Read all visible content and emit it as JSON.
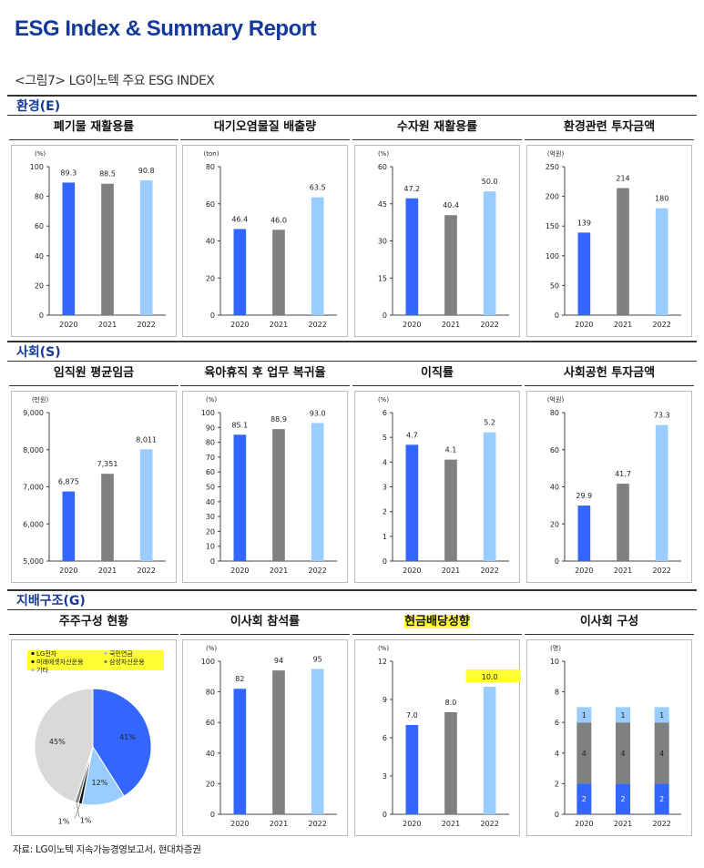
{
  "header": {
    "title": "ESG Index & Summary Report",
    "figure_label": "<그림7> LG이노텍 주요 ESG INDEX"
  },
  "sections": {
    "env": "환경(E)",
    "soc": "사회(S)",
    "gov": "지배구조(G)"
  },
  "source": "자료: LG이노텍 지속가능경영보고서, 현대차증권",
  "colors": {
    "y2020": "#3366ff",
    "y2021": "#808080",
    "y2022": "#99ccff",
    "other": "#d9d9d9",
    "highlight": "#ffff33"
  },
  "chart_data": [
    {
      "id": "waste",
      "type": "bar",
      "title": "폐기물 재활용률",
      "unit": "(%)",
      "categories": [
        "2020",
        "2021",
        "2022"
      ],
      "values": [
        89.3,
        88.5,
        90.8
      ],
      "labels": [
        "89.3",
        "88.5",
        "90.8"
      ],
      "ylim": [
        0,
        100
      ],
      "yticks": [
        0,
        20,
        40,
        60,
        80,
        100
      ],
      "yticklabels": [
        "0",
        "20",
        "40",
        "60",
        "80",
        "100"
      ]
    },
    {
      "id": "air",
      "type": "bar",
      "title": "대기오염물질 배출량",
      "unit": "(ton)",
      "categories": [
        "2020",
        "2021",
        "2022"
      ],
      "values": [
        46.4,
        46.0,
        63.5
      ],
      "labels": [
        "46.4",
        "46.0",
        "63.5"
      ],
      "ylim": [
        0,
        80
      ],
      "yticks": [
        0,
        20,
        40,
        60,
        80
      ],
      "yticklabels": [
        "0",
        "20",
        "40",
        "60",
        "80"
      ]
    },
    {
      "id": "water",
      "type": "bar",
      "title": "수자원 재활용률",
      "unit": "(%)",
      "categories": [
        "2020",
        "2021",
        "2022"
      ],
      "values": [
        47.2,
        40.4,
        50.0
      ],
      "labels": [
        "47.2",
        "40.4",
        "50.0"
      ],
      "ylim": [
        0,
        60
      ],
      "yticks": [
        0,
        15,
        30,
        45,
        60
      ],
      "yticklabels": [
        "0",
        "15",
        "30",
        "45",
        "60"
      ]
    },
    {
      "id": "envinv",
      "type": "bar",
      "title": "환경관련 투자금액",
      "unit": "(억원)",
      "categories": [
        "2020",
        "2021",
        "2022"
      ],
      "values": [
        139,
        214,
        180
      ],
      "labels": [
        "139",
        "214",
        "180"
      ],
      "ylim": [
        0,
        250
      ],
      "yticks": [
        0,
        50,
        100,
        150,
        200,
        250
      ],
      "yticklabels": [
        "0",
        "50",
        "100",
        "150",
        "200",
        "250"
      ]
    },
    {
      "id": "wage",
      "type": "bar",
      "title": "임직원 평균임금",
      "unit": "(만원)",
      "categories": [
        "2020",
        "2021",
        "2022"
      ],
      "values": [
        6875,
        7351,
        8011
      ],
      "labels": [
        "6,875",
        "7,351",
        "8,011"
      ],
      "ylim": [
        5000,
        9000
      ],
      "yticks": [
        5000,
        6000,
        7000,
        8000,
        9000
      ],
      "yticklabels": [
        "5,000",
        "6,000",
        "7,000",
        "8,000",
        "9,000"
      ]
    },
    {
      "id": "leave",
      "type": "bar",
      "title": "육아휴직 후 업무 복귀율",
      "unit": "(%)",
      "categories": [
        "2020",
        "2021",
        "2022"
      ],
      "values": [
        85.1,
        88.9,
        93.0
      ],
      "labels": [
        "85.1",
        "88.9",
        "93.0"
      ],
      "ylim": [
        0,
        100
      ],
      "yticks": [
        0,
        10,
        20,
        30,
        40,
        50,
        60,
        70,
        80,
        90,
        100
      ],
      "yticklabels": [
        "0",
        "10",
        "20",
        "30",
        "40",
        "50",
        "60",
        "70",
        "80",
        "90",
        "100"
      ]
    },
    {
      "id": "turnover",
      "type": "bar",
      "title": "이직률",
      "unit": "(%)",
      "categories": [
        "2020",
        "2021",
        "2022"
      ],
      "values": [
        4.7,
        4.1,
        5.2
      ],
      "labels": [
        "4.7",
        "4.1",
        "5.2"
      ],
      "ylim": [
        0,
        6
      ],
      "yticks": [
        0,
        1,
        2,
        3,
        4,
        5,
        6
      ],
      "yticklabels": [
        "0",
        "1",
        "2",
        "3",
        "4",
        "5",
        "6"
      ]
    },
    {
      "id": "social",
      "type": "bar",
      "title": "사회공헌 투자금액",
      "unit": "(억원)",
      "categories": [
        "2020",
        "2021",
        "2022"
      ],
      "values": [
        29.9,
        41.7,
        73.3
      ],
      "labels": [
        "29.9",
        "41.7",
        "73.3"
      ],
      "ylim": [
        0,
        80
      ],
      "yticks": [
        0,
        20,
        40,
        60,
        80
      ],
      "yticklabels": [
        "0",
        "20",
        "40",
        "60",
        "80"
      ]
    },
    {
      "id": "holders",
      "type": "pie",
      "title": "주주구성 현황",
      "legend": [
        "LG전자",
        "국민연금",
        "미래에셋자산운용",
        "삼성자산운용",
        "기타"
      ],
      "slices": [
        {
          "name": "LG전자",
          "value": 41,
          "label": "41%",
          "color": "#3366ff"
        },
        {
          "name": "국민연금",
          "value": 12,
          "label": "12%",
          "color": "#99ccff"
        },
        {
          "name": "미래에셋자산운용",
          "value": 1,
          "label": "1%",
          "color": "#111111"
        },
        {
          "name": "삼성자산운용",
          "value": 1,
          "label": "1%",
          "color": "#808080"
        },
        {
          "name": "기타",
          "value": 45,
          "label": "45%",
          "color": "#d9d9d9"
        }
      ]
    },
    {
      "id": "board",
      "type": "bar",
      "title": "이사회 참석률",
      "unit": "(%)",
      "categories": [
        "2020",
        "2021",
        "2022"
      ],
      "values": [
        82,
        94,
        95
      ],
      "labels": [
        "82",
        "94",
        "95"
      ],
      "ylim": [
        0,
        100
      ],
      "yticks": [
        0,
        20,
        40,
        60,
        80,
        100
      ],
      "yticklabels": [
        "0",
        "20",
        "40",
        "60",
        "80",
        "100"
      ]
    },
    {
      "id": "dividend",
      "type": "bar",
      "title": "현금배당성향",
      "unit": "(%)",
      "categories": [
        "2020",
        "2021",
        "2022"
      ],
      "values": [
        7.0,
        8.0,
        10.0
      ],
      "labels": [
        "7.0",
        "8.0",
        "10.0"
      ],
      "ylim": [
        0,
        12
      ],
      "yticks": [
        0,
        3,
        6,
        9,
        12
      ],
      "yticklabels": [
        "0",
        "3",
        "6",
        "9",
        "12"
      ],
      "highlight_title": true,
      "highlight_label": 2
    },
    {
      "id": "boardcomp",
      "type": "stacked_bar",
      "title": "이사회 구성",
      "unit": "(명)",
      "categories": [
        "2020",
        "2021",
        "2022"
      ],
      "series": [
        {
          "values": [
            2,
            2,
            2
          ],
          "labels": [
            "2",
            "2",
            "2"
          ],
          "color": "#3366ff"
        },
        {
          "values": [
            4,
            4,
            4
          ],
          "labels": [
            "4",
            "4",
            "4"
          ],
          "color": "#808080"
        },
        {
          "values": [
            1,
            1,
            1
          ],
          "labels": [
            "1",
            "1",
            "1"
          ],
          "color": "#99ccff"
        }
      ],
      "ylim": [
        0,
        10
      ],
      "yticks": [
        0,
        2,
        4,
        6,
        8,
        10
      ],
      "yticklabels": [
        "0",
        "2",
        "4",
        "6",
        "8",
        "10"
      ]
    }
  ]
}
